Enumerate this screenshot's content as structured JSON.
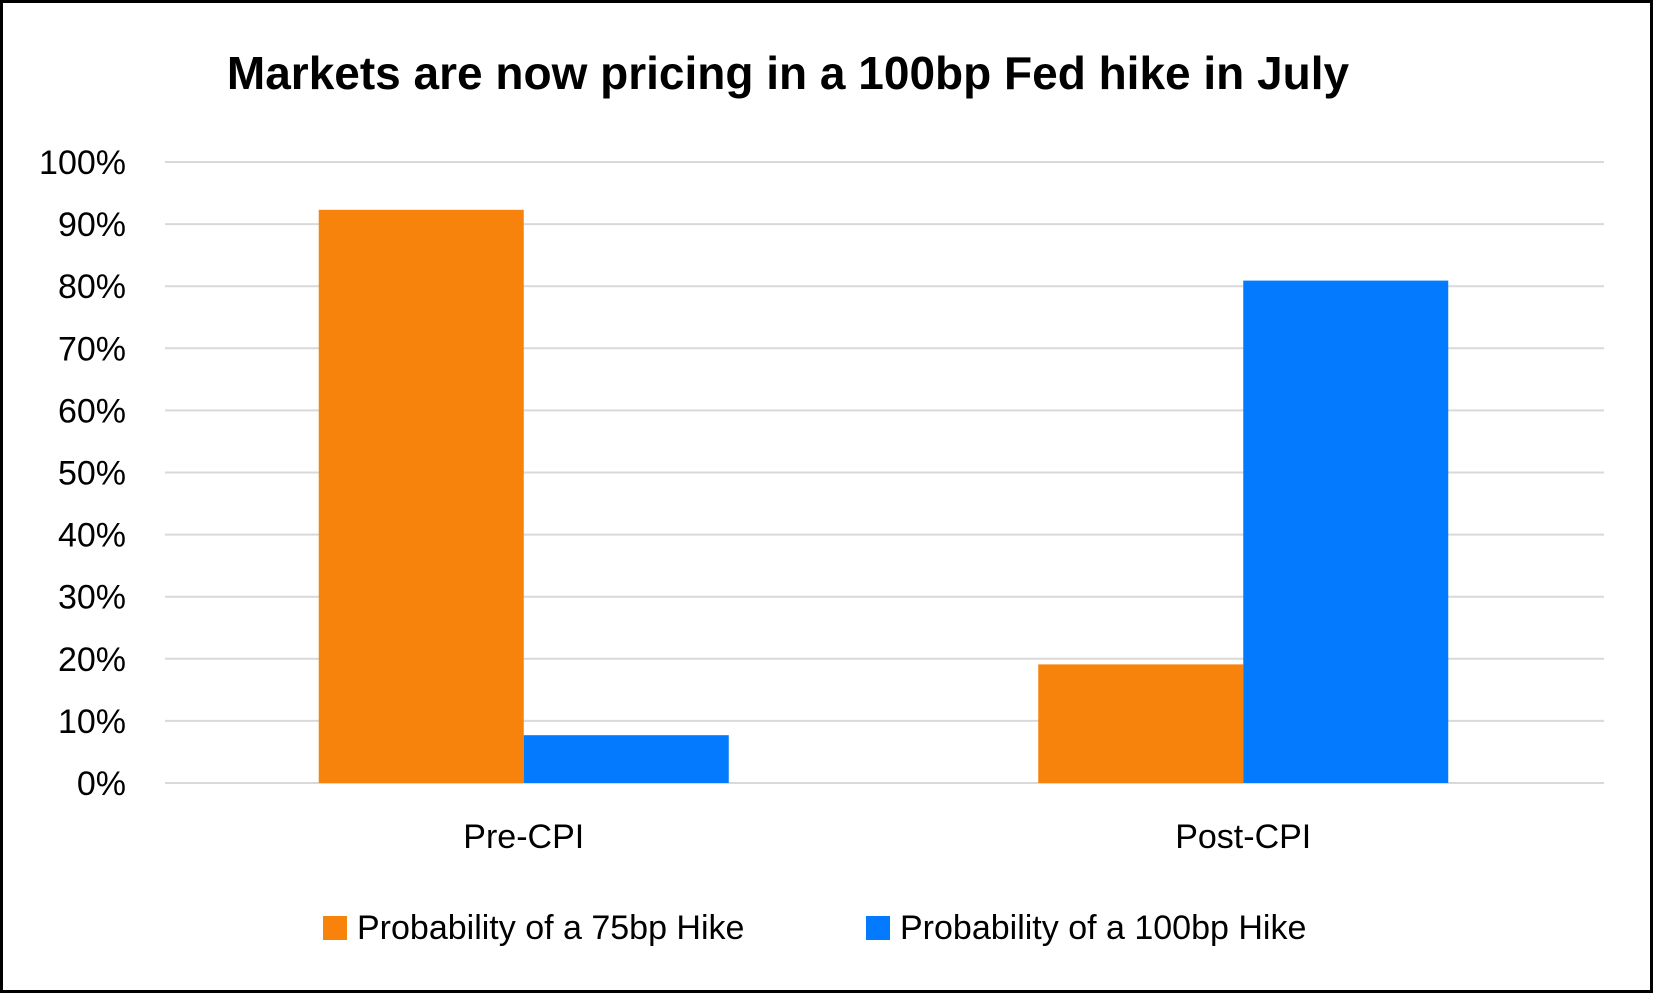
{
  "chart_data": {
    "type": "bar",
    "title": "Markets are now pricing in a 100bp Fed hike in July",
    "xlabel": "",
    "ylabel": "",
    "categories": [
      "Pre-CPI",
      "Post-CPI"
    ],
    "series": [
      {
        "name": "Probability of a 75bp Hike",
        "values": [
          0.923,
          0.191
        ],
        "color": "#F7820C"
      },
      {
        "name": "Probability of a 100bp Hike",
        "values": [
          0.077,
          0.809
        ],
        "color": "#047BFE"
      }
    ],
    "ylim": [
      0,
      1
    ],
    "yticks": [
      0,
      0.1,
      0.2,
      0.3,
      0.4,
      0.5,
      0.6,
      0.7,
      0.8,
      0.9,
      1.0
    ],
    "ytick_labels": [
      "0%",
      "10%",
      "20%",
      "30%",
      "40%",
      "50%",
      "60%",
      "70%",
      "80%",
      "90%",
      "100%"
    ],
    "grid": true,
    "gridline_color": "#D9D9D9",
    "legend_position": "bottom"
  }
}
